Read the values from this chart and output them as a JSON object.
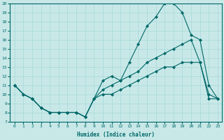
{
  "xlabel": "Humidex (Indice chaleur)",
  "bg_color": "#c8e8e8",
  "line_color": "#006868",
  "grid_color": "#a8d8d8",
  "xlim": [
    -0.5,
    23.5
  ],
  "ylim": [
    7,
    20
  ],
  "xticks": [
    0,
    1,
    2,
    3,
    4,
    5,
    6,
    7,
    8,
    9,
    10,
    11,
    12,
    13,
    14,
    15,
    16,
    17,
    18,
    19,
    20,
    21,
    22,
    23
  ],
  "yticks": [
    7,
    8,
    9,
    10,
    11,
    12,
    13,
    14,
    15,
    16,
    17,
    18,
    19,
    20
  ],
  "line1_x": [
    0,
    1,
    2,
    3,
    4,
    5,
    6,
    7,
    8,
    9,
    10,
    11,
    12,
    13,
    14,
    15,
    16,
    17,
    18,
    19,
    20,
    21,
    22,
    23
  ],
  "line1_y": [
    11,
    10,
    9.5,
    8.5,
    8,
    8,
    8,
    8,
    7.5,
    9.5,
    11.5,
    12,
    11.5,
    13.5,
    15.5,
    17.5,
    18.5,
    20,
    20,
    19,
    16.5,
    16,
    11,
    9.5
  ],
  "line2_x": [
    0,
    1,
    2,
    3,
    4,
    5,
    6,
    7,
    8,
    9,
    10,
    11,
    12,
    13,
    14,
    15,
    16,
    17,
    18,
    19,
    20,
    21,
    22,
    23
  ],
  "line2_y": [
    11,
    10,
    9.5,
    8.5,
    8,
    8,
    8,
    8,
    7.5,
    9.5,
    10.5,
    11,
    11.5,
    12,
    12.5,
    13.5,
    14,
    14.5,
    15,
    15.5,
    16,
    13.5,
    10,
    9.5
  ],
  "line3_x": [
    0,
    1,
    2,
    3,
    4,
    5,
    6,
    7,
    8,
    9,
    10,
    11,
    12,
    13,
    14,
    15,
    16,
    17,
    18,
    19,
    20,
    21,
    22,
    23
  ],
  "line3_y": [
    11,
    10,
    9.5,
    8.5,
    8,
    8,
    8,
    8,
    7.5,
    9.5,
    10,
    10,
    10.5,
    11,
    11.5,
    12,
    12.5,
    13,
    13,
    13.5,
    13.5,
    13.5,
    9.5,
    9.5
  ]
}
